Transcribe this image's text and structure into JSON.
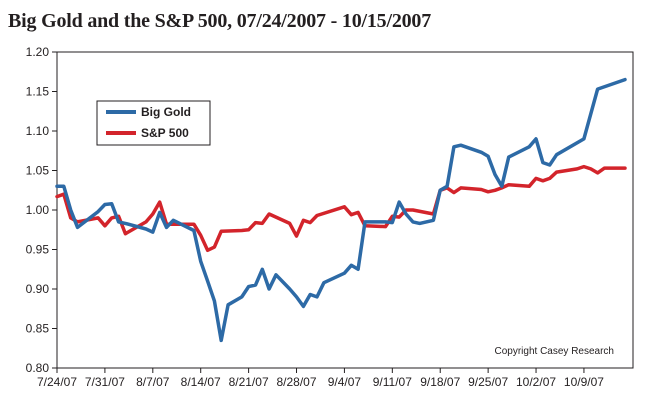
{
  "chart_data": {
    "type": "line",
    "title": "Big Gold and the S&P 500, 07/24/2007 - 10/15/2007",
    "xlabel": "",
    "ylabel": "",
    "ylim": [
      0.8,
      1.2
    ],
    "xlim": [
      "2007-07-24",
      "2007-10-15"
    ],
    "y_ticks": [
      "0.80",
      "0.85",
      "0.90",
      "0.95",
      "1.00",
      "1.05",
      "1.10",
      "1.15",
      "1.20"
    ],
    "x_ticks": [
      {
        "date": "2007-07-24",
        "label": "7/24/07"
      },
      {
        "date": "2007-07-31",
        "label": "7/31/07"
      },
      {
        "date": "2007-08-07",
        "label": "8/7/07"
      },
      {
        "date": "2007-08-14",
        "label": "8/14/07"
      },
      {
        "date": "2007-08-21",
        "label": "8/21/07"
      },
      {
        "date": "2007-08-28",
        "label": "8/28/07"
      },
      {
        "date": "2007-09-04",
        "label": "9/4/07"
      },
      {
        "date": "2007-09-11",
        "label": "9/11/07"
      },
      {
        "date": "2007-09-18",
        "label": "9/18/07"
      },
      {
        "date": "2007-09-25",
        "label": "9/25/07"
      },
      {
        "date": "2007-10-02",
        "label": "10/2/07"
      },
      {
        "date": "2007-10-09",
        "label": "10/9/07"
      }
    ],
    "grid": false,
    "legend_position": "upper-left",
    "annotation": "Copyright Casey Research",
    "series": [
      {
        "name": "Big Gold",
        "color": "#2d6aa6",
        "points": [
          [
            "2007-07-24",
            1.03
          ],
          [
            "2007-07-25",
            1.03
          ],
          [
            "2007-07-26",
            1.0
          ],
          [
            "2007-07-27",
            0.978
          ],
          [
            "2007-07-30",
            0.998
          ],
          [
            "2007-07-31",
            1.007
          ],
          [
            "2007-08-01",
            1.008
          ],
          [
            "2007-08-02",
            0.985
          ],
          [
            "2007-08-03",
            0.983
          ],
          [
            "2007-08-06",
            0.976
          ],
          [
            "2007-08-07",
            0.972
          ],
          [
            "2007-08-08",
            0.997
          ],
          [
            "2007-08-09",
            0.978
          ],
          [
            "2007-08-10",
            0.987
          ],
          [
            "2007-08-13",
            0.974
          ],
          [
            "2007-08-14",
            0.935
          ],
          [
            "2007-08-15",
            0.91
          ],
          [
            "2007-08-16",
            0.885
          ],
          [
            "2007-08-17",
            0.835
          ],
          [
            "2007-08-18",
            0.88
          ],
          [
            "2007-08-20",
            0.89
          ],
          [
            "2007-08-21",
            0.903
          ],
          [
            "2007-08-22",
            0.905
          ],
          [
            "2007-08-23",
            0.925
          ],
          [
            "2007-08-24",
            0.9
          ],
          [
            "2007-08-25",
            0.918
          ],
          [
            "2007-08-27",
            0.9
          ],
          [
            "2007-08-28",
            0.89
          ],
          [
            "2007-08-29",
            0.878
          ],
          [
            "2007-08-30",
            0.893
          ],
          [
            "2007-08-31",
            0.89
          ],
          [
            "2007-09-01",
            0.908
          ],
          [
            "2007-09-04",
            0.92
          ],
          [
            "2007-09-05",
            0.93
          ],
          [
            "2007-09-06",
            0.925
          ],
          [
            "2007-09-07",
            0.985
          ],
          [
            "2007-09-10",
            0.985
          ],
          [
            "2007-09-11",
            0.984
          ],
          [
            "2007-09-12",
            1.01
          ],
          [
            "2007-09-13",
            0.995
          ],
          [
            "2007-09-14",
            0.985
          ],
          [
            "2007-09-15",
            0.983
          ],
          [
            "2007-09-17",
            0.987
          ],
          [
            "2007-09-18",
            1.025
          ],
          [
            "2007-09-19",
            1.03
          ],
          [
            "2007-09-20",
            1.08
          ],
          [
            "2007-09-21",
            1.082
          ],
          [
            "2007-09-24",
            1.073
          ],
          [
            "2007-09-25",
            1.068
          ],
          [
            "2007-09-26",
            1.045
          ],
          [
            "2007-09-27",
            1.03
          ],
          [
            "2007-09-28",
            1.067
          ],
          [
            "2007-10-01",
            1.08
          ],
          [
            "2007-10-02",
            1.09
          ],
          [
            "2007-10-03",
            1.06
          ],
          [
            "2007-10-04",
            1.057
          ],
          [
            "2007-10-05",
            1.07
          ],
          [
            "2007-10-09",
            1.09
          ],
          [
            "2007-10-11",
            1.153
          ],
          [
            "2007-10-15",
            1.165
          ]
        ]
      },
      {
        "name": "S&P 500",
        "color": "#d3242b",
        "points": [
          [
            "2007-07-24",
            1.017
          ],
          [
            "2007-07-25",
            1.02
          ],
          [
            "2007-07-26",
            0.99
          ],
          [
            "2007-07-27",
            0.985
          ],
          [
            "2007-07-30",
            0.99
          ],
          [
            "2007-07-31",
            0.98
          ],
          [
            "2007-08-01",
            0.99
          ],
          [
            "2007-08-02",
            0.992
          ],
          [
            "2007-08-03",
            0.97
          ],
          [
            "2007-08-06",
            0.985
          ],
          [
            "2007-08-07",
            0.995
          ],
          [
            "2007-08-08",
            1.01
          ],
          [
            "2007-08-09",
            0.982
          ],
          [
            "2007-08-10",
            0.982
          ],
          [
            "2007-08-13",
            0.982
          ],
          [
            "2007-08-14",
            0.968
          ],
          [
            "2007-08-15",
            0.949
          ],
          [
            "2007-08-16",
            0.953
          ],
          [
            "2007-08-17",
            0.973
          ],
          [
            "2007-08-20",
            0.974
          ],
          [
            "2007-08-21",
            0.975
          ],
          [
            "2007-08-22",
            0.984
          ],
          [
            "2007-08-23",
            0.983
          ],
          [
            "2007-08-24",
            0.995
          ],
          [
            "2007-08-27",
            0.983
          ],
          [
            "2007-08-28",
            0.967
          ],
          [
            "2007-08-29",
            0.987
          ],
          [
            "2007-08-30",
            0.984
          ],
          [
            "2007-08-31",
            0.993
          ],
          [
            "2007-09-04",
            1.004
          ],
          [
            "2007-09-05",
            0.994
          ],
          [
            "2007-09-06",
            0.997
          ],
          [
            "2007-09-07",
            0.98
          ],
          [
            "2007-09-10",
            0.979
          ],
          [
            "2007-09-11",
            0.992
          ],
          [
            "2007-09-12",
            0.991
          ],
          [
            "2007-09-13",
            1.0
          ],
          [
            "2007-09-14",
            1.0
          ],
          [
            "2007-09-17",
            0.995
          ],
          [
            "2007-09-18",
            1.025
          ],
          [
            "2007-09-19",
            1.028
          ],
          [
            "2007-09-20",
            1.022
          ],
          [
            "2007-09-21",
            1.028
          ],
          [
            "2007-09-24",
            1.026
          ],
          [
            "2007-09-25",
            1.023
          ],
          [
            "2007-09-26",
            1.025
          ],
          [
            "2007-09-27",
            1.028
          ],
          [
            "2007-09-28",
            1.032
          ],
          [
            "2007-10-01",
            1.03
          ],
          [
            "2007-10-02",
            1.04
          ],
          [
            "2007-10-03",
            1.037
          ],
          [
            "2007-10-04",
            1.04
          ],
          [
            "2007-10-05",
            1.048
          ],
          [
            "2007-10-08",
            1.052
          ],
          [
            "2007-10-09",
            1.055
          ],
          [
            "2007-10-10",
            1.052
          ],
          [
            "2007-10-11",
            1.047
          ],
          [
            "2007-10-12",
            1.053
          ],
          [
            "2007-10-15",
            1.053
          ]
        ]
      }
    ]
  }
}
